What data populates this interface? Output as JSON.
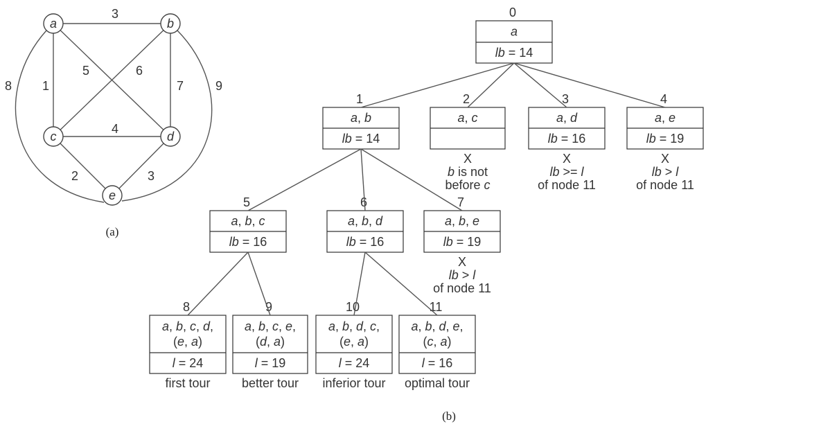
{
  "graph": {
    "caption": "(a)",
    "vertices": [
      {
        "id": "a",
        "label": "a"
      },
      {
        "id": "b",
        "label": "b"
      },
      {
        "id": "c",
        "label": "c"
      },
      {
        "id": "d",
        "label": "d"
      },
      {
        "id": "e",
        "label": "e"
      }
    ],
    "edges": [
      {
        "from": "a",
        "to": "b",
        "weight": "3"
      },
      {
        "from": "a",
        "to": "c",
        "weight": "1"
      },
      {
        "from": "a",
        "to": "d",
        "weight": "5"
      },
      {
        "from": "b",
        "to": "c",
        "weight": "6"
      },
      {
        "from": "b",
        "to": "d",
        "weight": "7"
      },
      {
        "from": "c",
        "to": "d",
        "weight": "4"
      },
      {
        "from": "c",
        "to": "e",
        "weight": "2"
      },
      {
        "from": "d",
        "to": "e",
        "weight": "3"
      },
      {
        "from": "a",
        "to": "e",
        "weight": "8"
      },
      {
        "from": "b",
        "to": "e",
        "weight": "9"
      }
    ]
  },
  "tree": {
    "caption": "(b)",
    "nodes": [
      {
        "num": "0",
        "path": [
          "a"
        ],
        "bound": "lb = 14",
        "notes": []
      },
      {
        "num": "1",
        "path": [
          "a, b"
        ],
        "bound": "lb = 14",
        "notes": []
      },
      {
        "num": "2",
        "path": [
          "a, c"
        ],
        "bound": "",
        "notes": [
          "X",
          "b is not",
          "before c"
        ]
      },
      {
        "num": "3",
        "path": [
          "a, d"
        ],
        "bound": "lb = 16",
        "notes": [
          "X",
          "lb >= l",
          "of node 11"
        ]
      },
      {
        "num": "4",
        "path": [
          "a, e"
        ],
        "bound": "lb = 19",
        "notes": [
          "X",
          "lb > l",
          "of node 11"
        ]
      },
      {
        "num": "5",
        "path": [
          "a, b, c"
        ],
        "bound": "lb = 16",
        "notes": []
      },
      {
        "num": "6",
        "path": [
          "a, b, d"
        ],
        "bound": "lb = 16",
        "notes": []
      },
      {
        "num": "7",
        "path": [
          "a, b, e"
        ],
        "bound": "lb = 19",
        "notes": [
          "X",
          "lb > l",
          "of node 11"
        ]
      },
      {
        "num": "8",
        "path": [
          "a, b, c, d,",
          "(e, a)"
        ],
        "bound": "l = 24",
        "notes": [
          "first tour"
        ]
      },
      {
        "num": "9",
        "path": [
          "a, b, c, e,",
          "(d, a)"
        ],
        "bound": "l = 19",
        "notes": [
          "better tour"
        ]
      },
      {
        "num": "10",
        "path": [
          "a, b, d, c,",
          "(e, a)"
        ],
        "bound": "l = 24",
        "notes": [
          "inferior tour"
        ]
      },
      {
        "num": "11",
        "path": [
          "a, b, d, e,",
          "(c, a)"
        ],
        "bound": "l = 16",
        "notes": [
          "optimal tour"
        ]
      }
    ],
    "links": [
      [
        0,
        1
      ],
      [
        0,
        2
      ],
      [
        0,
        3
      ],
      [
        0,
        4
      ],
      [
        1,
        5
      ],
      [
        1,
        6
      ],
      [
        1,
        7
      ],
      [
        5,
        8
      ],
      [
        5,
        9
      ],
      [
        6,
        10
      ],
      [
        6,
        11
      ]
    ]
  }
}
